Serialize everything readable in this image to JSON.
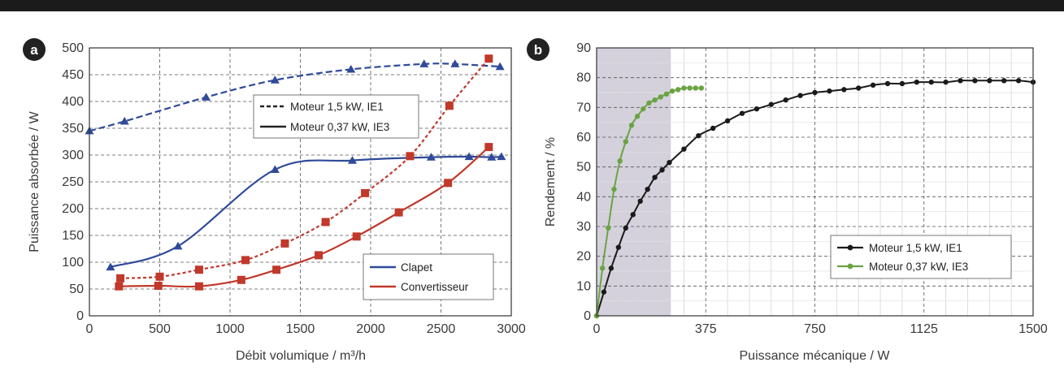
{
  "chart_data": [
    {
      "panel": "a",
      "type": "line",
      "xlabel": "Débit volumique / m³/h",
      "ylabel": "Puissance absorbée / W",
      "xlim": [
        0,
        3000
      ],
      "ylim": [
        0,
        500
      ],
      "xticks": [
        0,
        500,
        1000,
        1500,
        2000,
        2500,
        3000
      ],
      "yticks": [
        0,
        50,
        100,
        150,
        200,
        250,
        300,
        350,
        400,
        450,
        500
      ],
      "grid": true,
      "legends": [
        {
          "position": "upper-center",
          "entries": [
            {
              "label": "Moteur 1,5 kW, IE1",
              "style": "dashed"
            },
            {
              "label": "Moteur 0,37 kW, IE3",
              "style": "solid"
            }
          ]
        },
        {
          "position": "lower-right",
          "entries": [
            {
              "label": "Clapet",
              "color": "#2f4a9a"
            },
            {
              "label": "Convertisseur",
              "color": "#c0392b"
            }
          ]
        }
      ],
      "series": [
        {
          "color": "#2f4a9a",
          "dashed": true,
          "marker": "triangle",
          "x": [
            0,
            250,
            830,
            1320,
            1860,
            2380,
            2600,
            2920
          ],
          "y": [
            345,
            363,
            408,
            440,
            460,
            470,
            470,
            465
          ]
        },
        {
          "color": "#2f4a9a",
          "dashed": false,
          "marker": "triangle",
          "x": [
            150,
            630,
            1320,
            1870,
            2430,
            2700,
            2860,
            2930
          ],
          "y": [
            91,
            130,
            273,
            290,
            296,
            297,
            296,
            297
          ]
        },
        {
          "color": "#c0392b",
          "dashed": true,
          "marker": "square",
          "x": [
            220,
            500,
            780,
            1110,
            1390,
            1680,
            1960,
            2280,
            2560,
            2840
          ],
          "y": [
            70,
            73,
            86,
            104,
            135,
            175,
            229,
            298,
            392,
            480
          ]
        },
        {
          "color": "#c0392b",
          "dashed": false,
          "marker": "square",
          "x": [
            210,
            490,
            780,
            1080,
            1330,
            1630,
            1900,
            2200,
            2550,
            2840
          ],
          "y": [
            55,
            56,
            55,
            67,
            86,
            113,
            148,
            193,
            248,
            315
          ]
        }
      ]
    },
    {
      "panel": "b",
      "type": "line",
      "xlabel": "Puissance mécanique / W",
      "ylabel": "Rendement / %",
      "xlim": [
        0,
        1500
      ],
      "ylim": [
        0,
        90
      ],
      "xticks": [
        0,
        375,
        750,
        1125,
        1500
      ],
      "yticks": [
        0,
        10,
        20,
        30,
        40,
        50,
        60,
        70,
        80,
        90
      ],
      "grid": true,
      "shaded_x_range": [
        0,
        255
      ],
      "legend": {
        "position": "lower-right",
        "entries": [
          {
            "label": "Moteur 1,5 kW, IE1",
            "color": "#1a1a1a"
          },
          {
            "label": "Moteur 0,37 kW, IE3",
            "color": "#6aa343"
          }
        ]
      },
      "series": [
        {
          "color": "#1a1a1a",
          "marker": "circle",
          "x": [
            0,
            25,
            50,
            75,
            100,
            125,
            150,
            175,
            200,
            225,
            250,
            300,
            350,
            400,
            450,
            500,
            550,
            600,
            650,
            700,
            750,
            800,
            850,
            900,
            950,
            1000,
            1050,
            1100,
            1150,
            1200,
            1250,
            1300,
            1350,
            1400,
            1450,
            1500
          ],
          "y": [
            0,
            8,
            16,
            23,
            29.5,
            34,
            38.5,
            42.5,
            46.5,
            49,
            51.5,
            56,
            60.5,
            63,
            65.5,
            68,
            69.5,
            71,
            72.5,
            74,
            75,
            75.5,
            76,
            76.5,
            77.5,
            78,
            78,
            78.5,
            78.5,
            78.5,
            79,
            79,
            79,
            79,
            79,
            78.5
          ]
        },
        {
          "color": "#6aa343",
          "marker": "circle",
          "x": [
            0,
            20,
            40,
            60,
            80,
            100,
            120,
            140,
            160,
            180,
            200,
            220,
            240,
            260,
            280,
            300,
            320,
            340,
            360
          ],
          "y": [
            0,
            16,
            29.5,
            42.5,
            52,
            58.5,
            64,
            67,
            69.5,
            71.5,
            72.5,
            73.5,
            74.5,
            75.5,
            76,
            76.5,
            76.5,
            76.5,
            76.5
          ]
        }
      ]
    }
  ]
}
